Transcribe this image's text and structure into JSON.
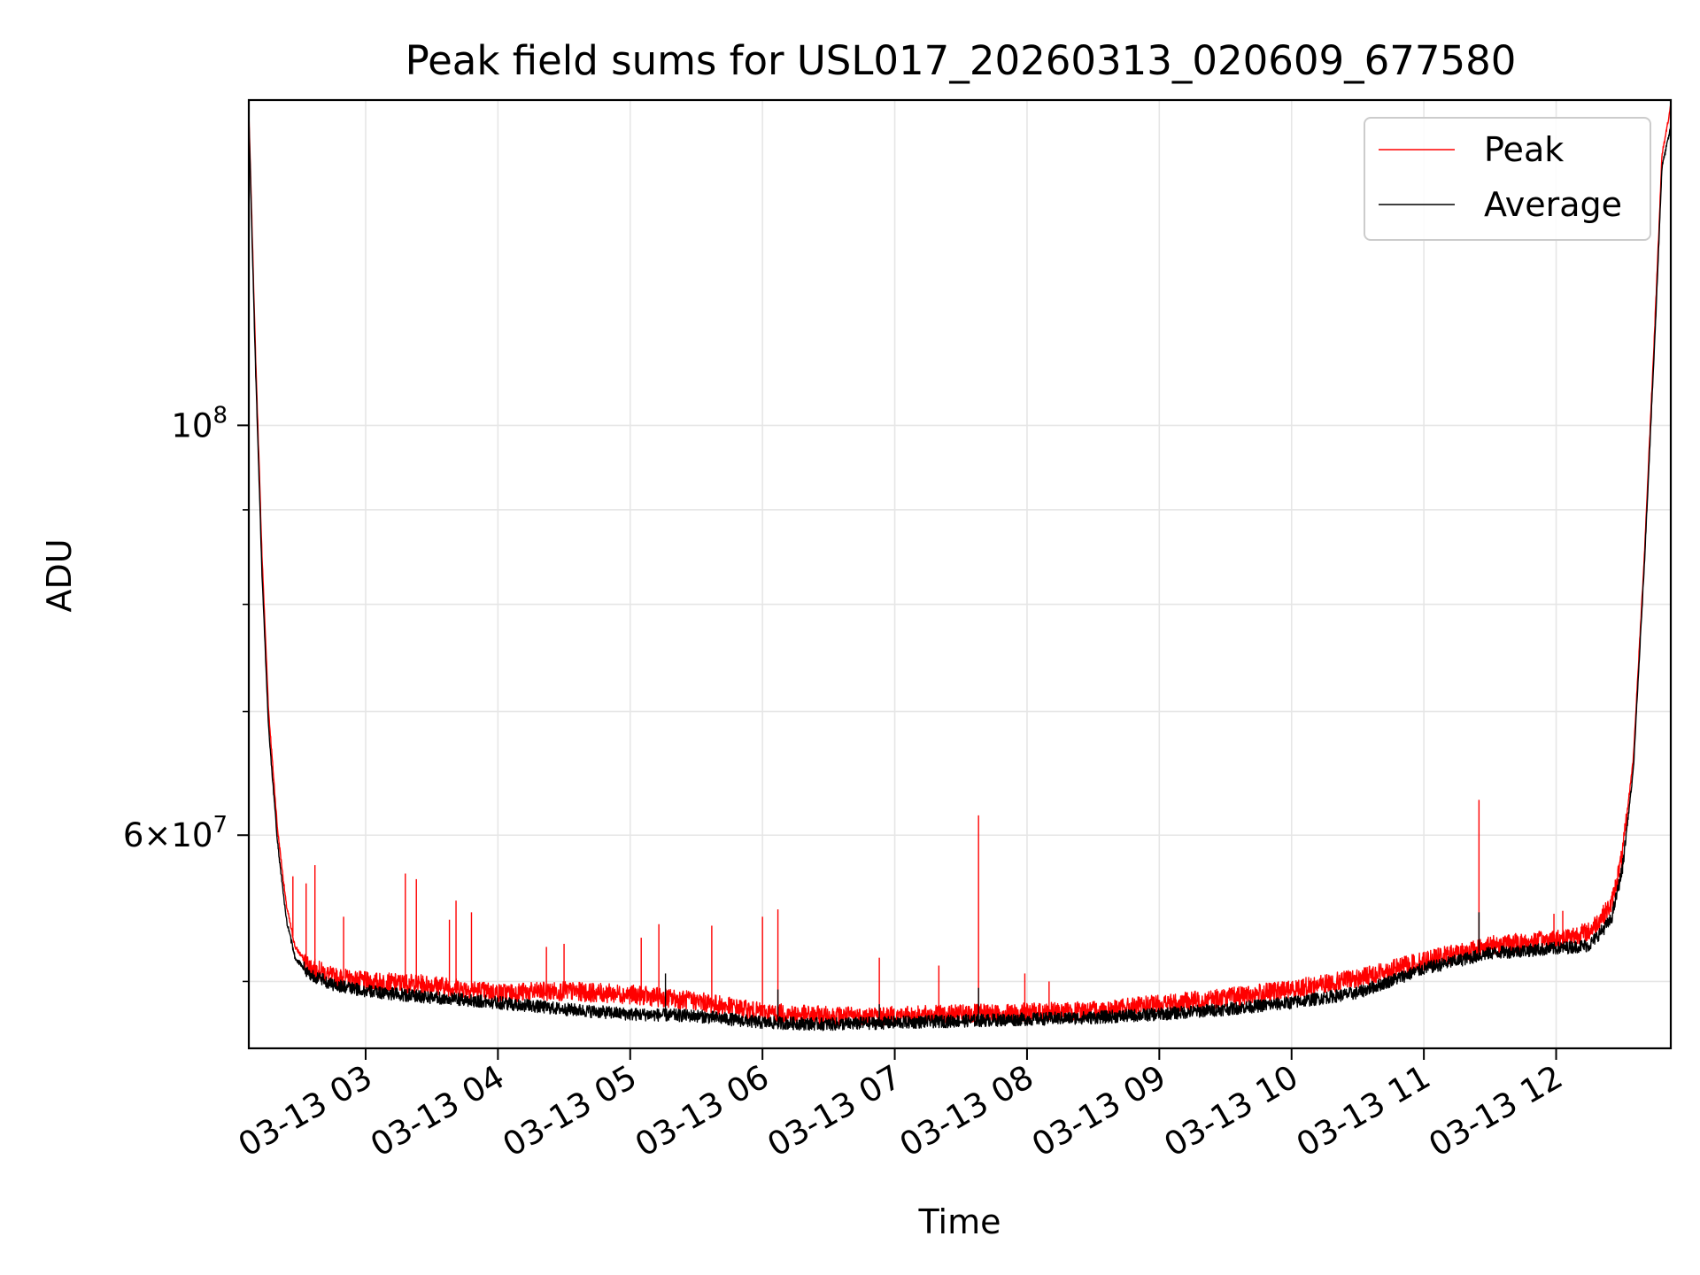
{
  "chart_data": {
    "type": "line",
    "title": "Peak field sums for USL017_20260313_020609_677580",
    "xlabel": "Time",
    "ylabel": "ADU",
    "yscale": "log",
    "grid": true,
    "legend_position": "top-right",
    "x_tick_labels": [
      "03-13 03",
      "03-13 04",
      "03-13 05",
      "03-13 06",
      "03-13 07",
      "03-13 08",
      "03-13 09",
      "03-13 10",
      "03-13 11",
      "03-13 12"
    ],
    "x_ticks": [
      "2026-03-13 03:00",
      "2026-03-13 04:00",
      "2026-03-13 05:00",
      "2026-03-13 06:00",
      "2026-03-13 07:00",
      "2026-03-13 08:00",
      "2026-03-13 09:00",
      "2026-03-13 10:00",
      "2026-03-13 11:00",
      "2026-03-13 12:00"
    ],
    "xlim": [
      "2026-03-13 02:07",
      "2026-03-13 12:52"
    ],
    "y_tick_labels": [
      {
        "value": 60000000,
        "mantissa": "6",
        "exponent": "7"
      },
      {
        "value": 100000000,
        "base": "10",
        "exponent": "8"
      }
    ],
    "ylim": [
      46000000,
      150000000
    ],
    "series": [
      {
        "name": "Peak",
        "color": "#ff0000",
        "points": [
          [
            "2026-03-13 02:07",
            148000000
          ],
          [
            "2026-03-13 02:10",
            110000000
          ],
          [
            "2026-03-13 02:13",
            85000000
          ],
          [
            "2026-03-13 02:16",
            70000000
          ],
          [
            "2026-03-13 02:20",
            60500000
          ],
          [
            "2026-03-13 02:24",
            55000000
          ],
          [
            "2026-03-13 02:28",
            52200000
          ],
          [
            "2026-03-13 02:34",
            51000000
          ],
          [
            "2026-03-13 02:45",
            50300000
          ],
          [
            "2026-03-13 03:00",
            50000000
          ],
          [
            "2026-03-13 03:30",
            49800000
          ],
          [
            "2026-03-13 04:00",
            49300000
          ],
          [
            "2026-03-13 04:30",
            49400000
          ],
          [
            "2026-03-13 05:00",
            49200000
          ],
          [
            "2026-03-13 05:30",
            48800000
          ],
          [
            "2026-03-13 06:00",
            48100000
          ],
          [
            "2026-03-13 06:30",
            47900000
          ],
          [
            "2026-03-13 07:00",
            47900000
          ],
          [
            "2026-03-13 07:30",
            48000000
          ],
          [
            "2026-03-13 08:00",
            48100000
          ],
          [
            "2026-03-13 08:30",
            48200000
          ],
          [
            "2026-03-13 09:00",
            48600000
          ],
          [
            "2026-03-13 09:30",
            49000000
          ],
          [
            "2026-03-13 10:00",
            49500000
          ],
          [
            "2026-03-13 10:30",
            50200000
          ],
          [
            "2026-03-13 11:00",
            51300000
          ],
          [
            "2026-03-13 11:30",
            52300000
          ],
          [
            "2026-03-13 12:00",
            52700000
          ],
          [
            "2026-03-13 12:15",
            53200000
          ],
          [
            "2026-03-13 12:25",
            55000000
          ],
          [
            "2026-03-13 12:30",
            58500000
          ],
          [
            "2026-03-13 12:35",
            66000000
          ],
          [
            "2026-03-13 12:40",
            85000000
          ],
          [
            "2026-03-13 12:45",
            115000000
          ],
          [
            "2026-03-13 12:48",
            140000000
          ],
          [
            "2026-03-13 12:52",
            149000000
          ]
        ],
        "spikes": [
          [
            "2026-03-13 02:27",
            57000000
          ],
          [
            "2026-03-13 02:33",
            56500000
          ],
          [
            "2026-03-13 02:37",
            57800000
          ],
          [
            "2026-03-13 02:50",
            54200000
          ],
          [
            "2026-03-13 03:18",
            57200000
          ],
          [
            "2026-03-13 03:23",
            56800000
          ],
          [
            "2026-03-13 03:38",
            54000000
          ],
          [
            "2026-03-13 03:41",
            55300000
          ],
          [
            "2026-03-13 03:48",
            54500000
          ],
          [
            "2026-03-13 04:22",
            52200000
          ],
          [
            "2026-03-13 04:30",
            52400000
          ],
          [
            "2026-03-13 05:05",
            52800000
          ],
          [
            "2026-03-13 05:13",
            53700000
          ],
          [
            "2026-03-13 05:37",
            53600000
          ],
          [
            "2026-03-13 06:00",
            54200000
          ],
          [
            "2026-03-13 06:07",
            54700000
          ],
          [
            "2026-03-13 06:53",
            51500000
          ],
          [
            "2026-03-13 07:20",
            51000000
          ],
          [
            "2026-03-13 07:38",
            61500000
          ],
          [
            "2026-03-13 07:59",
            50500000
          ],
          [
            "2026-03-13 08:10",
            50000000
          ],
          [
            "2026-03-13 11:25",
            62700000
          ],
          [
            "2026-03-13 11:59",
            54400000
          ],
          [
            "2026-03-13 12:03",
            54600000
          ]
        ]
      },
      {
        "name": "Average",
        "color": "#000000",
        "points": [
          [
            "2026-03-13 02:07",
            147000000
          ],
          [
            "2026-03-13 02:10",
            108000000
          ],
          [
            "2026-03-13 02:13",
            83000000
          ],
          [
            "2026-03-13 02:16",
            68500000
          ],
          [
            "2026-03-13 02:20",
            59500000
          ],
          [
            "2026-03-13 02:24",
            54000000
          ],
          [
            "2026-03-13 02:28",
            51500000
          ],
          [
            "2026-03-13 02:34",
            50500000
          ],
          [
            "2026-03-13 02:45",
            49800000
          ],
          [
            "2026-03-13 03:00",
            49400000
          ],
          [
            "2026-03-13 03:30",
            49000000
          ],
          [
            "2026-03-13 04:00",
            48700000
          ],
          [
            "2026-03-13 04:30",
            48300000
          ],
          [
            "2026-03-13 05:00",
            48000000
          ],
          [
            "2026-03-13 05:30",
            47900000
          ],
          [
            "2026-03-13 06:00",
            47500000
          ],
          [
            "2026-03-13 06:30",
            47400000
          ],
          [
            "2026-03-13 07:00",
            47500000
          ],
          [
            "2026-03-13 07:30",
            47600000
          ],
          [
            "2026-03-13 08:00",
            47700000
          ],
          [
            "2026-03-13 08:30",
            47800000
          ],
          [
            "2026-03-13 09:00",
            48000000
          ],
          [
            "2026-03-13 09:30",
            48300000
          ],
          [
            "2026-03-13 10:00",
            48700000
          ],
          [
            "2026-03-13 10:30",
            49300000
          ],
          [
            "2026-03-13 11:00",
            50800000
          ],
          [
            "2026-03-13 11:30",
            51800000
          ],
          [
            "2026-03-13 12:00",
            52100000
          ],
          [
            "2026-03-13 12:15",
            52300000
          ],
          [
            "2026-03-13 12:25",
            54000000
          ],
          [
            "2026-03-13 12:30",
            57500000
          ],
          [
            "2026-03-13 12:35",
            65000000
          ],
          [
            "2026-03-13 12:40",
            84000000
          ],
          [
            "2026-03-13 12:45",
            113000000
          ],
          [
            "2026-03-13 12:48",
            138000000
          ],
          [
            "2026-03-13 12:52",
            145000000
          ]
        ],
        "spikes": [
          [
            "2026-03-13 07:38",
            49600000
          ],
          [
            "2026-03-13 11:25",
            54500000
          ],
          [
            "2026-03-13 06:53",
            48600000
          ],
          [
            "2026-03-13 06:07",
            49500000
          ],
          [
            "2026-03-13 05:16",
            50500000
          ]
        ]
      }
    ]
  }
}
